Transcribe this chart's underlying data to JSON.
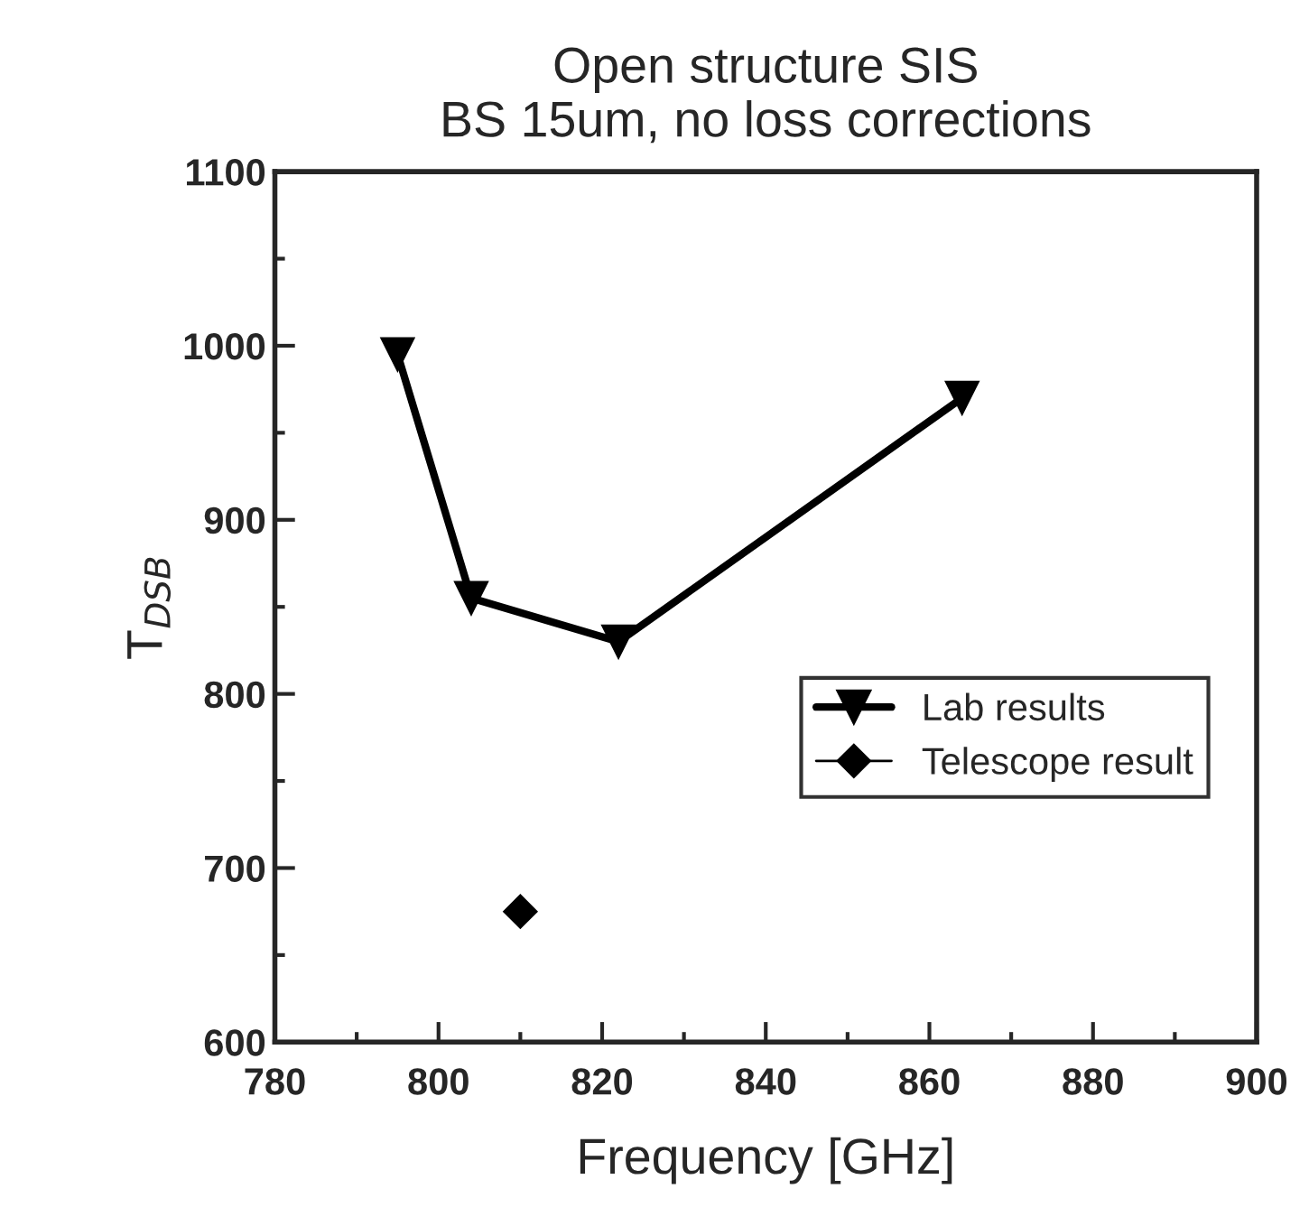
{
  "chart_data": {
    "type": "line",
    "title": "Open structure SIS\nBS 15um, no loss corrections",
    "xlabel": "Frequency [GHz]",
    "ylabel": "T$_{DSB}$",
    "xlim": [
      780,
      900
    ],
    "xticks": [
      780,
      800,
      820,
      840,
      860,
      880,
      900
    ],
    "ylim": [
      600,
      1100
    ],
    "yticks": [
      600,
      700,
      800,
      900,
      1000,
      1100
    ],
    "grid": false,
    "legend": "center right",
    "series": [
      {
        "name": "Lab results",
        "color": "#000000",
        "marker": "triangle",
        "x": [
          795,
          804,
          822,
          864
        ],
        "values": [
          995,
          855,
          830,
          970
        ]
      },
      {
        "name": "Telescope result",
        "type": "scatter",
        "color": "#000000",
        "marker": "diamond",
        "x": [
          810
        ],
        "values": [
          675
        ]
      }
    ]
  }
}
